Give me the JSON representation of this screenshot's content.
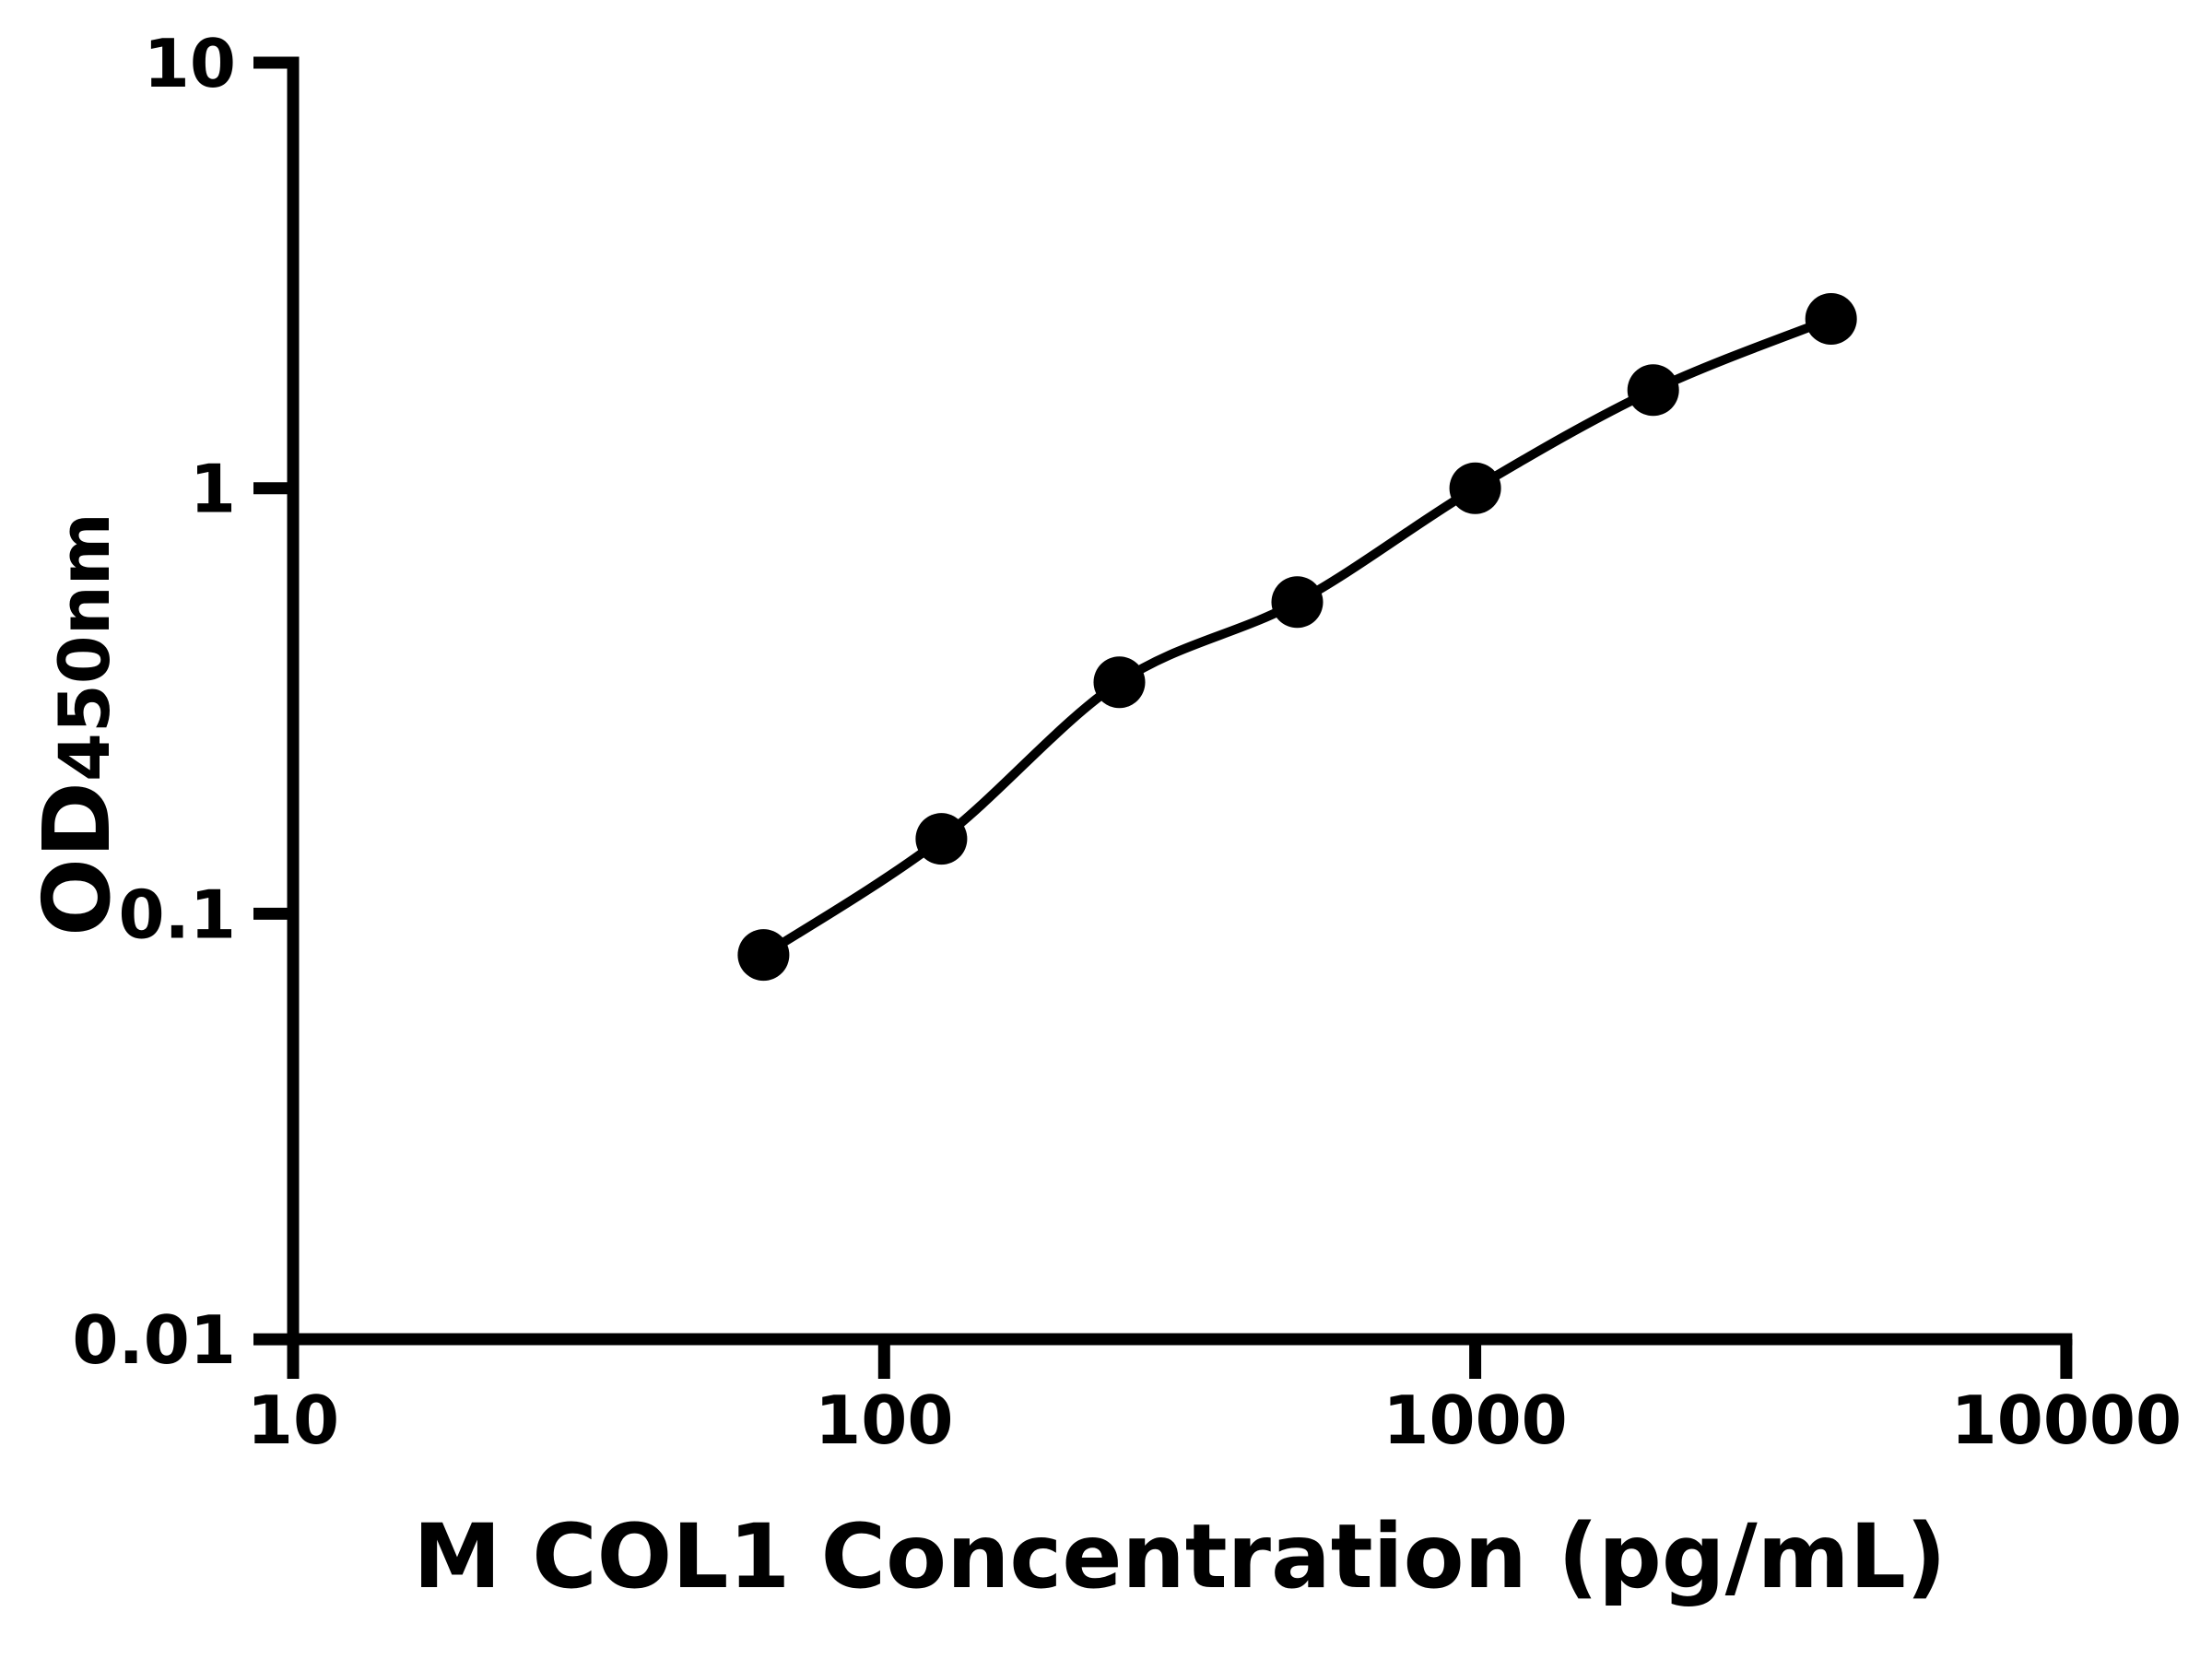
{
  "figure": {
    "background": "#ffffff",
    "axis_color": "#000000",
    "curve_color": "#000000",
    "marker_color": "#000000"
  },
  "chart_data": {
    "type": "scatter",
    "x_scale": "log10",
    "y_scale": "log10",
    "x": [
      62.5,
      125,
      250,
      500,
      1000,
      2000,
      4000
    ],
    "y": [
      0.08,
      0.15,
      0.35,
      0.54,
      1.0,
      1.7,
      2.5
    ],
    "fit_curve_through_points": true,
    "title": "",
    "xlabel": "M COL1 Concentration (pg/mL)",
    "ylabel": {
      "base": "OD",
      "subscript": "450nm"
    },
    "x_ticks": [
      "10",
      "100",
      "1000",
      "10000"
    ],
    "y_ticks": [
      "0.01",
      "0.1",
      "1",
      "10"
    ],
    "xlim": [
      10,
      10000
    ],
    "ylim": [
      0.01,
      10
    ],
    "grid": false,
    "legend": false,
    "marker": {
      "shape": "circle",
      "color": "#000000"
    }
  }
}
